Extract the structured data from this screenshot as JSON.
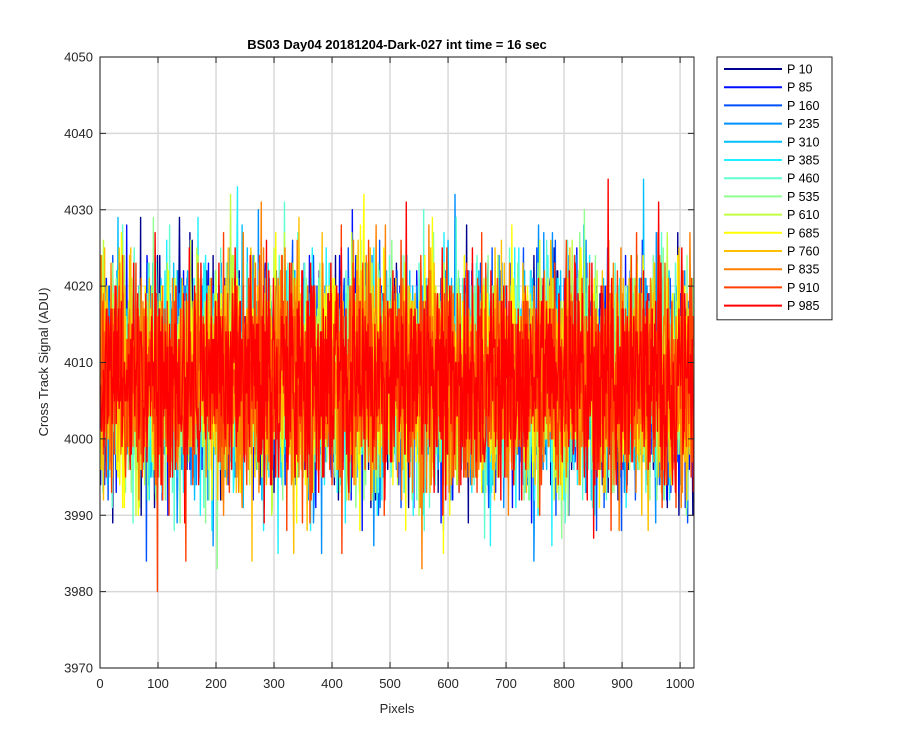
{
  "chart_data": {
    "type": "line",
    "title": "BS03 Day04 20181204-Dark-027 int time = 16 sec",
    "xlabel": "Pixels",
    "ylabel": "Cross Track Signal (ADU)",
    "xlim": [
      0,
      1024
    ],
    "ylim": [
      3970,
      4050
    ],
    "x_ticks": [
      0,
      100,
      200,
      300,
      400,
      500,
      600,
      700,
      800,
      900,
      1000
    ],
    "y_ticks": [
      3970,
      3980,
      3990,
      4000,
      4010,
      4020,
      4030,
      4040,
      4050
    ],
    "grid": true,
    "legend_position": "outside-top-right",
    "noise_model": {
      "n_points": 1024,
      "mean": 4008,
      "std": 7
    },
    "series": [
      {
        "name": "P 10",
        "color": "#00008f"
      },
      {
        "name": "P 85",
        "color": "#0010ff"
      },
      {
        "name": "P 160",
        "color": "#0050ff"
      },
      {
        "name": "P 235",
        "color": "#0090ff"
      },
      {
        "name": "P 310",
        "color": "#00c0ff"
      },
      {
        "name": "P 385",
        "color": "#20f0ff"
      },
      {
        "name": "P 460",
        "color": "#60ffd0"
      },
      {
        "name": "P 535",
        "color": "#90ff90"
      },
      {
        "name": "P 610",
        "color": "#c0ff40"
      },
      {
        "name": "P 685",
        "color": "#ffff00"
      },
      {
        "name": "P 760",
        "color": "#ffc000"
      },
      {
        "name": "P 835",
        "color": "#ff8000"
      },
      {
        "name": "P 910",
        "color": "#ff4000"
      },
      {
        "name": "P 985",
        "color": "#ff0000"
      }
    ]
  }
}
